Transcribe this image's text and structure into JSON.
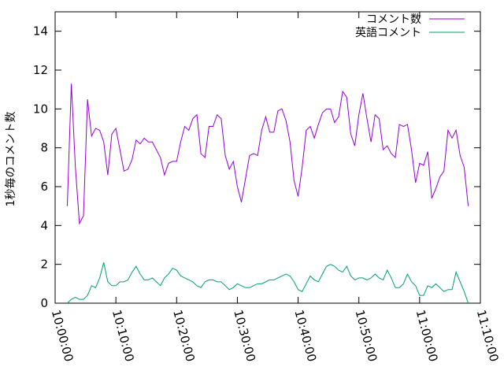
{
  "chart_data": {
    "type": "line",
    "title": "",
    "xlabel": "",
    "ylabel": "1秒毎のコメント数",
    "ylim": [
      0,
      15
    ],
    "yticks": [
      0,
      2,
      4,
      6,
      8,
      10,
      12,
      14
    ],
    "xlim": [
      "10:00:00",
      "11:10:00"
    ],
    "xticks": [
      "10:00:00",
      "10:10:00",
      "10:20:00",
      "10:30:00",
      "10:40:00",
      "10:50:00",
      "11:00:00",
      "11:10:00"
    ],
    "x_start": "10:02:00",
    "x_step_seconds": 40,
    "grid": false,
    "legend": "top-right",
    "series": [
      {
        "name": "コメント数",
        "color": "#9400d3",
        "values": [
          5.0,
          11.3,
          7.0,
          4.1,
          4.5,
          10.5,
          8.6,
          9.0,
          8.9,
          8.3,
          6.6,
          8.7,
          9.0,
          7.9,
          6.8,
          6.9,
          7.4,
          8.4,
          8.2,
          8.5,
          8.3,
          8.3,
          7.9,
          7.5,
          6.6,
          7.2,
          7.3,
          7.3,
          8.3,
          9.1,
          8.9,
          9.5,
          9.7,
          7.7,
          7.5,
          9.1,
          9.1,
          9.7,
          9.5,
          7.6,
          6.9,
          7.3,
          6.0,
          5.2,
          6.4,
          7.6,
          7.7,
          7.6,
          8.9,
          9.6,
          8.8,
          8.8,
          9.9,
          10.0,
          9.4,
          8.3,
          6.3,
          5.5,
          7.0,
          8.9,
          9.1,
          8.5,
          9.2,
          9.8,
          10.0,
          10.0,
          9.3,
          9.6,
          10.9,
          10.6,
          8.7,
          8.1,
          9.7,
          10.8,
          9.5,
          8.3,
          9.7,
          9.5,
          7.9,
          8.1,
          7.7,
          7.5,
          9.2,
          9.1,
          9.2,
          7.9,
          6.2,
          7.2,
          7.1,
          7.8,
          5.4,
          5.9,
          6.5,
          6.8,
          8.9,
          8.5,
          8.9,
          7.6,
          7.0,
          5.0
        ]
      },
      {
        "name": "英語コメント",
        "color": "#009e73",
        "values": [
          0.0,
          0.2,
          0.3,
          0.2,
          0.2,
          0.4,
          0.9,
          0.8,
          1.3,
          2.1,
          1.1,
          0.9,
          0.9,
          1.1,
          1.1,
          1.2,
          1.6,
          1.9,
          1.5,
          1.2,
          1.2,
          1.3,
          1.1,
          0.9,
          1.3,
          1.5,
          1.8,
          1.7,
          1.4,
          1.3,
          1.2,
          1.1,
          0.9,
          0.8,
          1.1,
          1.2,
          1.2,
          1.1,
          1.1,
          0.9,
          0.7,
          0.8,
          1.0,
          0.9,
          0.8,
          0.8,
          0.9,
          1.0,
          1.0,
          1.1,
          1.2,
          1.2,
          1.3,
          1.4,
          1.5,
          1.4,
          1.1,
          0.7,
          0.6,
          1.0,
          1.4,
          1.2,
          1.1,
          1.5,
          1.9,
          2.0,
          1.9,
          1.7,
          1.6,
          1.9,
          1.4,
          1.2,
          1.3,
          1.3,
          1.2,
          1.3,
          1.5,
          1.3,
          1.2,
          1.7,
          1.3,
          0.8,
          0.8,
          1.0,
          1.5,
          1.1,
          0.9,
          0.4,
          0.4,
          0.9,
          0.8,
          1.0,
          0.8,
          0.6,
          0.7,
          0.7,
          1.6,
          1.1,
          0.6,
          0.0
        ]
      }
    ]
  }
}
